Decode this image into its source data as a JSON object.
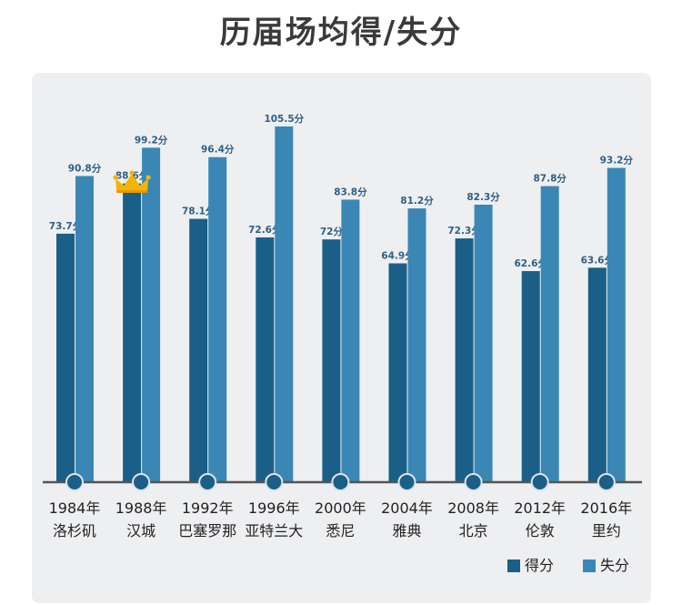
{
  "title": "历届场均得/失分",
  "chart_data": {
    "type": "bar",
    "categories": [
      [
        "1984年",
        "洛杉矶"
      ],
      [
        "1988年",
        "汉城"
      ],
      [
        "1992年",
        "巴塞罗那"
      ],
      [
        "1996年",
        "亚特兰大"
      ],
      [
        "2000年",
        "悉尼"
      ],
      [
        "2004年",
        "雅典"
      ],
      [
        "2008年",
        "北京"
      ],
      [
        "2012年",
        "伦敦"
      ],
      [
        "2016年",
        "里约"
      ]
    ],
    "series": [
      {
        "name": "得分",
        "color": "#1a5f87",
        "values": [
          73.7,
          88.6,
          78.1,
          72.6,
          72,
          64.9,
          72.3,
          62.6,
          63.6
        ],
        "labels": [
          "73.7分",
          "88.6分",
          "78.1分",
          "72.6分",
          "72分",
          "64.9分",
          "72.3分",
          "62.6分",
          "63.6分"
        ]
      },
      {
        "name": "失分",
        "color": "#3a87b5",
        "values": [
          90.8,
          99.2,
          96.4,
          105.5,
          83.8,
          81.2,
          82.3,
          87.8,
          93.2
        ],
        "labels": [
          "90.8分",
          "99.2分",
          "96.4分",
          "105.5分",
          "83.8分",
          "81.2分",
          "82.3分",
          "87.8分",
          "93.2分"
        ]
      }
    ],
    "highlight": {
      "category_index": 1,
      "icon": "crown-icon",
      "color": "#f4b400"
    },
    "ylim": [
      0,
      110
    ],
    "grid": false,
    "legend": "bottom-right",
    "axis_color": "#555555"
  }
}
